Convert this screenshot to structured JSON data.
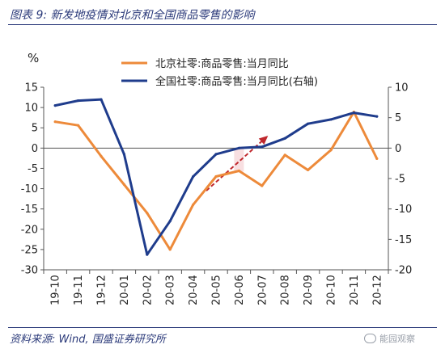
{
  "title": "图表 9:  新发地疫情对北京和全国商品零售的影响",
  "source": "资料来源: Wind, 国盛证券研究所",
  "watermark": "能园观察",
  "chart_data": {
    "type": "line",
    "unit_label": "%",
    "categories": [
      "19-10",
      "19-11",
      "19-12",
      "20-01",
      "20-02",
      "20-03",
      "20-04",
      "20-05",
      "20-06",
      "20-07",
      "20-08",
      "20-09",
      "20-10",
      "20-11",
      "20-12"
    ],
    "series": [
      {
        "name": "北京社零:商品零售:当月同比",
        "axis": "left",
        "color": "#ed8a3a",
        "values": [
          6.5,
          5.6,
          -2.0,
          -9.0,
          -16.0,
          -25.0,
          -14.0,
          -7.0,
          -5.6,
          -9.3,
          -1.7,
          -5.4,
          -0.5,
          8.9,
          -2.6
        ]
      },
      {
        "name": "全国社零:商品零售:当月同比(右轴)",
        "axis": "right",
        "color": "#1f3c8c",
        "values": [
          7.0,
          7.8,
          8.0,
          -1.0,
          -17.5,
          -12.0,
          -4.7,
          -1.0,
          0.0,
          0.2,
          1.6,
          4.0,
          4.7,
          5.8,
          5.2
        ]
      }
    ],
    "y_left": {
      "min": -30,
      "max": 15,
      "ticks": [
        -30,
        -25,
        -20,
        -15,
        -10,
        -5,
        0,
        5,
        10,
        15
      ]
    },
    "y_right": {
      "min": -20,
      "max": 10,
      "ticks": [
        -20,
        -15,
        -10,
        -5,
        0,
        5,
        10
      ]
    },
    "annotation": {
      "type": "dashed-arrow",
      "color": "#c0282d",
      "from_category": "20-05",
      "to_category": "20-07"
    },
    "legend_position": "top-right",
    "grid": false
  }
}
